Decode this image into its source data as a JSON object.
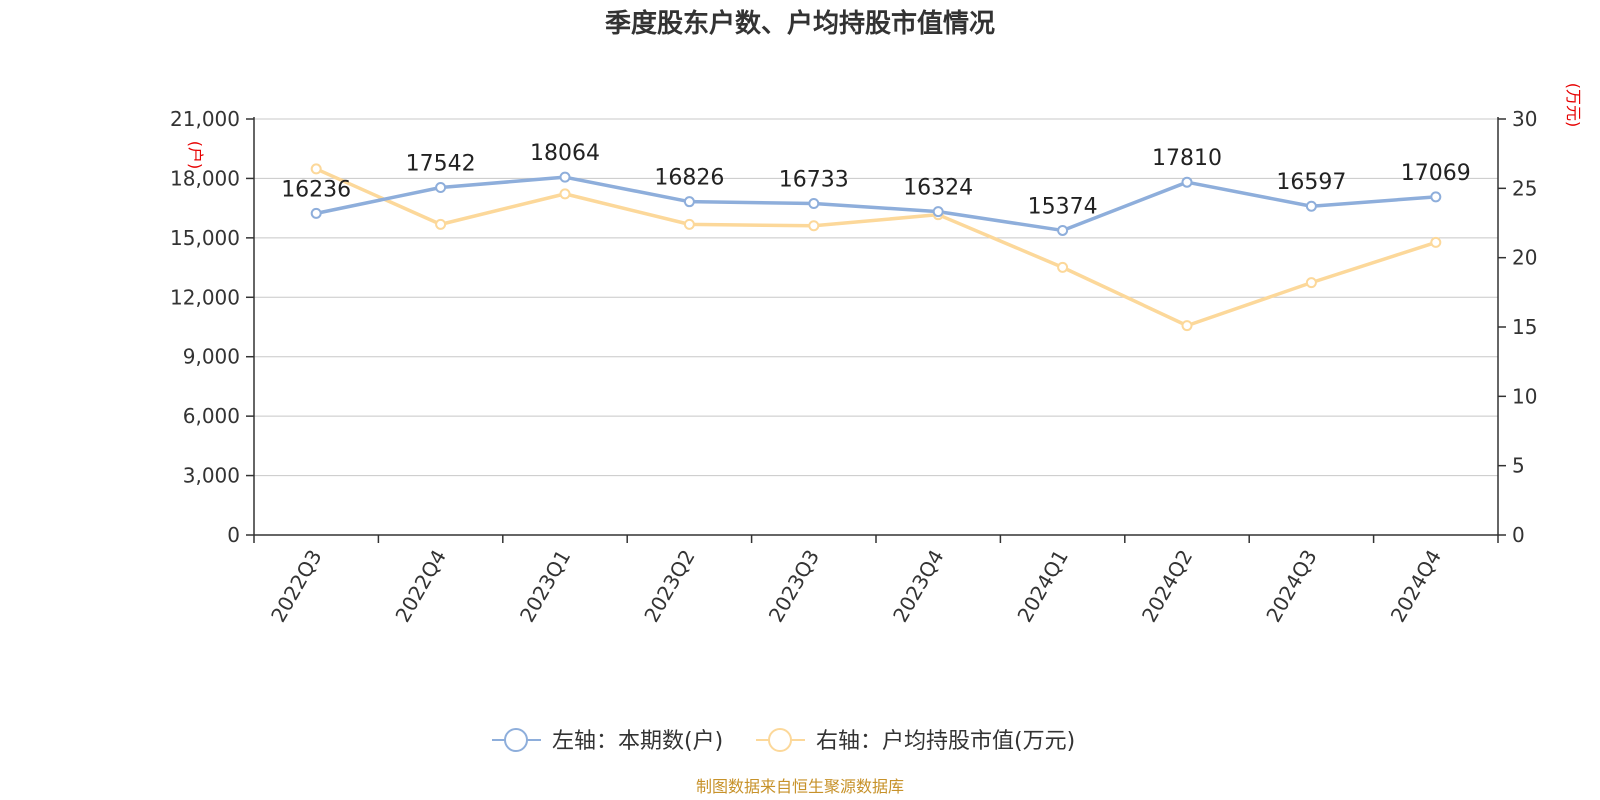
{
  "chart_data": {
    "type": "line",
    "title": "季度股东户数、户均持股市值情况",
    "categories": [
      "2022Q3",
      "2022Q4",
      "2023Q1",
      "2023Q2",
      "2023Q3",
      "2023Q4",
      "2024Q1",
      "2024Q2",
      "2024Q3",
      "2024Q4"
    ],
    "series": [
      {
        "name": "左轴：本期数(户)",
        "axis": "left",
        "color": "#8eaedb",
        "values": [
          16236,
          17542,
          18064,
          16826,
          16733,
          16324,
          15374,
          17810,
          16597,
          17069
        ],
        "data_labels": [
          "16236",
          "17542",
          "18064",
          "16826",
          "16733",
          "16324",
          "15374",
          "17810",
          "16597",
          "17069"
        ]
      },
      {
        "name": "右轴：户均持股市值(万元)",
        "axis": "right",
        "color": "#fcd89a",
        "values": [
          26.4,
          22.4,
          24.6,
          22.4,
          22.3,
          23.1,
          19.3,
          15.1,
          18.2,
          21.1
        ]
      }
    ],
    "left_axis": {
      "unit": "(户)",
      "ylim": [
        0,
        21000
      ],
      "ticks": [
        0,
        3000,
        6000,
        9000,
        12000,
        15000,
        18000,
        21000
      ],
      "tick_labels": [
        "0",
        "3,000",
        "6,000",
        "9,000",
        "12,000",
        "15,000",
        "18,000",
        "21,000"
      ]
    },
    "right_axis": {
      "unit": "(万元)",
      "ylim": [
        0,
        30
      ],
      "ticks": [
        0,
        5,
        10,
        15,
        20,
        25,
        30
      ],
      "tick_labels": [
        "0",
        "5",
        "10",
        "15",
        "20",
        "25",
        "30"
      ]
    },
    "grid": true,
    "legend_position": "bottom-center",
    "source": "制图数据来自恒生聚源数据库"
  }
}
